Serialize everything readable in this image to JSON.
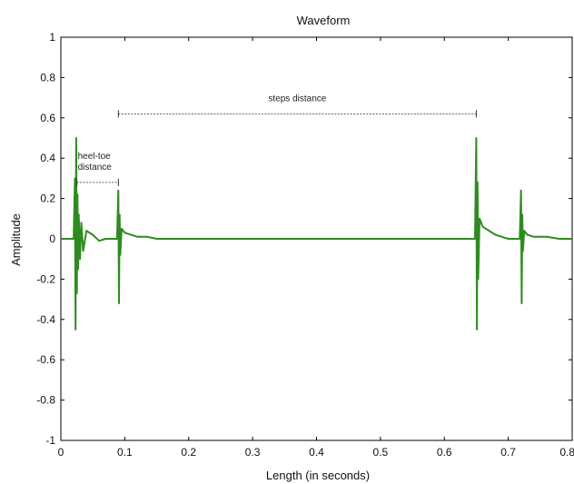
{
  "chart_data": {
    "type": "line",
    "title": "Waveform",
    "xlabel": "Length (in seconds)",
    "ylabel": "Amplitude",
    "xlim": [
      0,
      0.8
    ],
    "ylim": [
      -1,
      1
    ],
    "x_ticks": [
      0,
      0.1,
      0.2,
      0.3,
      0.4,
      0.5,
      0.6,
      0.7,
      0.8
    ],
    "x_tick_labels": [
      "0",
      "0.1",
      "0.2",
      "0.3",
      "0.4",
      "0.5",
      "0.6",
      "0.7",
      "0.8"
    ],
    "y_ticks": [
      1,
      0.8,
      0.6,
      0.4,
      0.2,
      0,
      -0.2,
      -0.4,
      -0.6,
      -0.8,
      -1
    ],
    "y_tick_labels": [
      "1",
      "0.8",
      "0.6",
      "0.4",
      "0.2",
      "0",
      "-0.2",
      "-0.4",
      "-0.6",
      "-0.8",
      "-1"
    ],
    "grid": false,
    "series_color": "#2e8b1f",
    "series": [
      {
        "x": [
          0.0,
          0.01,
          0.02,
          0.022,
          0.023,
          0.024,
          0.025,
          0.026,
          0.027,
          0.028,
          0.03,
          0.032,
          0.035,
          0.04,
          0.05,
          0.06,
          0.07,
          0.08,
          0.088,
          0.09,
          0.091,
          0.092,
          0.093,
          0.095,
          0.1,
          0.11,
          0.12,
          0.135,
          0.15,
          0.16,
          0.2,
          0.3,
          0.4,
          0.5,
          0.6,
          0.64,
          0.648,
          0.65,
          0.651,
          0.652,
          0.653,
          0.655,
          0.66,
          0.67,
          0.68,
          0.69,
          0.7,
          0.71,
          0.718,
          0.72,
          0.721,
          0.722,
          0.723,
          0.725,
          0.73,
          0.74,
          0.76,
          0.78,
          0.8
        ],
        "y": [
          0.0,
          0.0,
          0.0,
          0.3,
          -0.45,
          0.5,
          -0.27,
          0.22,
          -0.15,
          0.12,
          -0.1,
          0.08,
          -0.06,
          0.04,
          0.02,
          -0.01,
          0.0,
          0.0,
          0.0,
          0.24,
          -0.32,
          0.12,
          -0.08,
          0.05,
          0.03,
          0.02,
          0.01,
          0.01,
          0.0,
          0.0,
          0.0,
          0.0,
          0.0,
          0.0,
          0.0,
          0.0,
          0.0,
          0.5,
          -0.45,
          0.28,
          -0.2,
          0.1,
          0.06,
          0.04,
          0.02,
          0.01,
          0.0,
          0.0,
          0.0,
          0.24,
          -0.32,
          0.12,
          -0.06,
          0.04,
          0.02,
          0.01,
          0.01,
          0.0,
          0.0
        ]
      }
    ],
    "annotations": [
      {
        "text": "steps distance",
        "x1": 0.09,
        "x2": 0.65,
        "y": 0.62
      },
      {
        "text": "heel-toe distance",
        "lines": [
          "heel-toe",
          "distance"
        ],
        "x1": 0.025,
        "x2": 0.09,
        "y": 0.28
      }
    ]
  }
}
